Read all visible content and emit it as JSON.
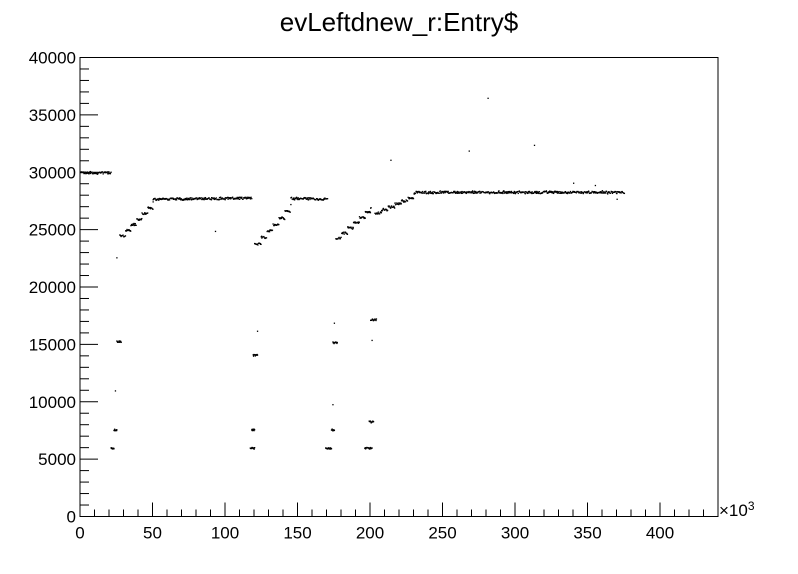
{
  "chart_data": {
    "type": "scatter",
    "title": "evLeftdnew_r:Entry$",
    "xlabel": "",
    "ylabel": "",
    "x_multiplier_label": "×10",
    "x_multiplier_exp": "3",
    "xlim": [
      0,
      440
    ],
    "ylim": [
      0,
      40000
    ],
    "x_ticks": [
      0,
      50,
      100,
      150,
      200,
      250,
      300,
      350,
      400
    ],
    "x_tick_labels": [
      "0",
      "50",
      "100",
      "150",
      "200",
      "250",
      "300",
      "350",
      "400"
    ],
    "y_ticks": [
      0,
      5000,
      10000,
      15000,
      20000,
      25000,
      30000,
      35000,
      40000
    ],
    "y_tick_labels": [
      "0",
      "5000",
      "10000",
      "15000",
      "20000",
      "25000",
      "30000",
      "35000",
      "40000"
    ],
    "grid": false,
    "segments": [
      {
        "x": [
          0,
          21
        ],
        "y": [
          30000,
          30000
        ]
      },
      {
        "x": [
          27,
          50
        ],
        "y": [
          24500,
          27400
        ],
        "rise": true
      },
      {
        "x": [
          50,
          118
        ],
        "y": [
          27700,
          27800
        ]
      },
      {
        "x": [
          120,
          145
        ],
        "y": [
          23800,
          27200
        ],
        "rise": true
      },
      {
        "x": [
          145,
          170
        ],
        "y": [
          27800,
          27700
        ]
      },
      {
        "x": [
          176,
          200
        ],
        "y": [
          24300,
          27000
        ],
        "rise": true
      },
      {
        "x": [
          203,
          230
        ],
        "y": [
          26500,
          28100
        ],
        "rise": true
      },
      {
        "x": [
          230,
          375
        ],
        "y": [
          28300,
          28300
        ]
      }
    ],
    "clusters": [
      {
        "x": [
          21,
          23
        ],
        "y": 6000
      },
      {
        "x": [
          23,
          25
        ],
        "y": 7600
      },
      {
        "x": [
          25,
          28
        ],
        "y": 15300
      },
      {
        "x": [
          117,
          120
        ],
        "y": 6000
      },
      {
        "x": [
          118,
          120
        ],
        "y": 7600
      },
      {
        "x": [
          119,
          122
        ],
        "y": 14100
      },
      {
        "x": [
          169,
          173
        ],
        "y": 6000
      },
      {
        "x": [
          173,
          175
        ],
        "y": 7600
      },
      {
        "x": [
          174,
          177
        ],
        "y": 15200
      },
      {
        "x": [
          196,
          201
        ],
        "y": 6000
      },
      {
        "x": [
          199,
          202
        ],
        "y": 8300
      },
      {
        "x": [
          200,
          204
        ],
        "y": 17200
      }
    ],
    "outliers": [
      {
        "x": 25,
        "y": 22600
      },
      {
        "x": 24,
        "y": 11000
      },
      {
        "x": 93,
        "y": 24900
      },
      {
        "x": 122,
        "y": 16200
      },
      {
        "x": 175,
        "y": 16900
      },
      {
        "x": 201,
        "y": 15400
      },
      {
        "x": 174,
        "y": 9800
      },
      {
        "x": 214,
        "y": 31100
      },
      {
        "x": 268,
        "y": 31900
      },
      {
        "x": 281,
        "y": 36500
      },
      {
        "x": 313,
        "y": 32400
      },
      {
        "x": 340,
        "y": 29100
      },
      {
        "x": 355,
        "y": 28900
      },
      {
        "x": 370,
        "y": 27700
      }
    ]
  }
}
